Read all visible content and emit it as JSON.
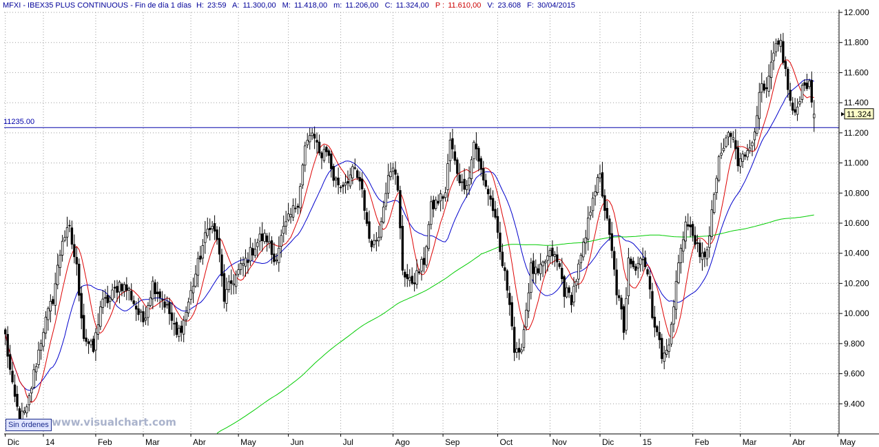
{
  "header": {
    "symbol": "MFXI - IBEX35 PLUS CONTINUOUS - Fin de día 1 días",
    "h_label": "H:",
    "h_value": "23:59",
    "a_label": "A:",
    "a_value": "11.300,00",
    "m_label": "M:",
    "m_value": "11.418,00",
    "mn_label": "m:",
    "mn_value": "11.206,00",
    "c_label": "C:",
    "c_value": "11.324,00",
    "p_label": "P :",
    "p_value": "11.610,00",
    "v_label": "V:",
    "v_value": "23.608",
    "f_label": "F:",
    "f_value": "30/04/2015"
  },
  "status_badge": "Sin órdenes",
  "watermark": "www.visualchart.com",
  "colors": {
    "background": "#ffffff",
    "grid": "#9a9a9a",
    "candle": "#000000",
    "ma_short": "#dd0000",
    "ma_mid": "#0000cc",
    "ma_long": "#00cc00",
    "level_line": "#0000aa",
    "header_blue": "#000099",
    "header_red": "#cc0000"
  },
  "chart_data": {
    "type": "candlestick",
    "y_axis": {
      "min": 9200,
      "max": 12000,
      "ticks": [
        9400,
        9600,
        9800,
        10000,
        10200,
        10400,
        10600,
        10800,
        11000,
        11200,
        11400,
        11600,
        11800,
        12000
      ],
      "tick_labels": [
        "9.400",
        "9.600",
        "9.800",
        "10.000",
        "10.200",
        "10.400",
        "10.600",
        "10.800",
        "11.000",
        "11.200",
        "11.400",
        "11.600",
        "11.800",
        "12.000"
      ]
    },
    "x_axis": {
      "labels": [
        "Dic",
        "14",
        "Feb",
        "Mar",
        "Abr",
        "May",
        "Jun",
        "Jul",
        "Ago",
        "Sep",
        "Oct",
        "Nov",
        "Dic",
        "15",
        "Feb",
        "Mar",
        "Abr",
        "May"
      ],
      "label_bar_index": [
        0,
        16,
        38,
        58,
        78,
        98,
        119,
        141,
        163,
        184,
        207,
        229,
        250,
        267,
        289,
        309,
        330,
        350
      ]
    },
    "grid": true,
    "level_line": {
      "value": 11235,
      "label": "11235.00"
    },
    "last_price": {
      "value": 11324,
      "label": "11.324"
    },
    "anchors": [
      [
        0,
        9850
      ],
      [
        3,
        9500
      ],
      [
        6,
        9300
      ],
      [
        9,
        9350
      ],
      [
        12,
        9600
      ],
      [
        16,
        9900
      ],
      [
        20,
        10100
      ],
      [
        24,
        10500
      ],
      [
        27,
        10550
      ],
      [
        30,
        10300
      ],
      [
        33,
        9850
      ],
      [
        37,
        9750
      ],
      [
        40,
        10050
      ],
      [
        44,
        10100
      ],
      [
        48,
        10200
      ],
      [
        52,
        10150
      ],
      [
        56,
        10000
      ],
      [
        58,
        9950
      ],
      [
        62,
        10200
      ],
      [
        66,
        10100
      ],
      [
        69,
        10000
      ],
      [
        72,
        9850
      ],
      [
        75,
        9950
      ],
      [
        79,
        10200
      ],
      [
        83,
        10450
      ],
      [
        86,
        10600
      ],
      [
        89,
        10500
      ],
      [
        92,
        10100
      ],
      [
        95,
        10200
      ],
      [
        99,
        10300
      ],
      [
        103,
        10400
      ],
      [
        107,
        10500
      ],
      [
        110,
        10500
      ],
      [
        113,
        10350
      ],
      [
        117,
        10550
      ],
      [
        120,
        10650
      ],
      [
        123,
        10750
      ],
      [
        126,
        11100
      ],
      [
        129,
        11200
      ],
      [
        132,
        11050
      ],
      [
        135,
        11100
      ],
      [
        138,
        10900
      ],
      [
        141,
        10850
      ],
      [
        144,
        10900
      ],
      [
        147,
        10950
      ],
      [
        150,
        10800
      ],
      [
        153,
        10500
      ],
      [
        155,
        10450
      ],
      [
        158,
        10600
      ],
      [
        161,
        10950
      ],
      [
        163,
        11000
      ],
      [
        165,
        10800
      ],
      [
        167,
        10300
      ],
      [
        170,
        10200
      ],
      [
        173,
        10250
      ],
      [
        176,
        10350
      ],
      [
        179,
        10700
      ],
      [
        182,
        10750
      ],
      [
        185,
        10800
      ],
      [
        187,
        11150
      ],
      [
        189,
        11000
      ],
      [
        192,
        10850
      ],
      [
        195,
        10900
      ],
      [
        197,
        11150
      ],
      [
        199,
        11000
      ],
      [
        202,
        10850
      ],
      [
        205,
        10700
      ],
      [
        208,
        10400
      ],
      [
        210,
        10250
      ],
      [
        212,
        10100
      ],
      [
        214,
        9750
      ],
      [
        216,
        9700
      ],
      [
        218,
        9900
      ],
      [
        221,
        10300
      ],
      [
        224,
        10250
      ],
      [
        227,
        10350
      ],
      [
        230,
        10400
      ],
      [
        233,
        10300
      ],
      [
        235,
        10150
      ],
      [
        238,
        10100
      ],
      [
        241,
        10300
      ],
      [
        244,
        10500
      ],
      [
        247,
        10800
      ],
      [
        250,
        10900
      ],
      [
        252,
        10700
      ],
      [
        255,
        10400
      ],
      [
        257,
        10150
      ],
      [
        259,
        10000
      ],
      [
        260,
        9850
      ],
      [
        262,
        10400
      ],
      [
        265,
        10300
      ],
      [
        268,
        10400
      ],
      [
        270,
        10250
      ],
      [
        272,
        10000
      ],
      [
        274,
        9900
      ],
      [
        276,
        9700
      ],
      [
        278,
        9750
      ],
      [
        280,
        9900
      ],
      [
        282,
        10200
      ],
      [
        284,
        10450
      ],
      [
        286,
        10600
      ],
      [
        288,
        10550
      ],
      [
        290,
        10500
      ],
      [
        292,
        10350
      ],
      [
        294,
        10400
      ],
      [
        296,
        10500
      ],
      [
        298,
        10800
      ],
      [
        300,
        11000
      ],
      [
        302,
        11100
      ],
      [
        304,
        11200
      ],
      [
        306,
        11150
      ],
      [
        308,
        11000
      ],
      [
        310,
        11100
      ],
      [
        312,
        11050
      ],
      [
        314,
        11150
      ],
      [
        316,
        11350
      ],
      [
        318,
        11500
      ],
      [
        320,
        11450
      ],
      [
        322,
        11650
      ],
      [
        324,
        11750
      ],
      [
        326,
        11800
      ],
      [
        328,
        11600
      ],
      [
        330,
        11400
      ],
      [
        332,
        11300
      ],
      [
        334,
        11450
      ],
      [
        336,
        11550
      ],
      [
        338,
        11500
      ],
      [
        340,
        11324
      ]
    ]
  }
}
